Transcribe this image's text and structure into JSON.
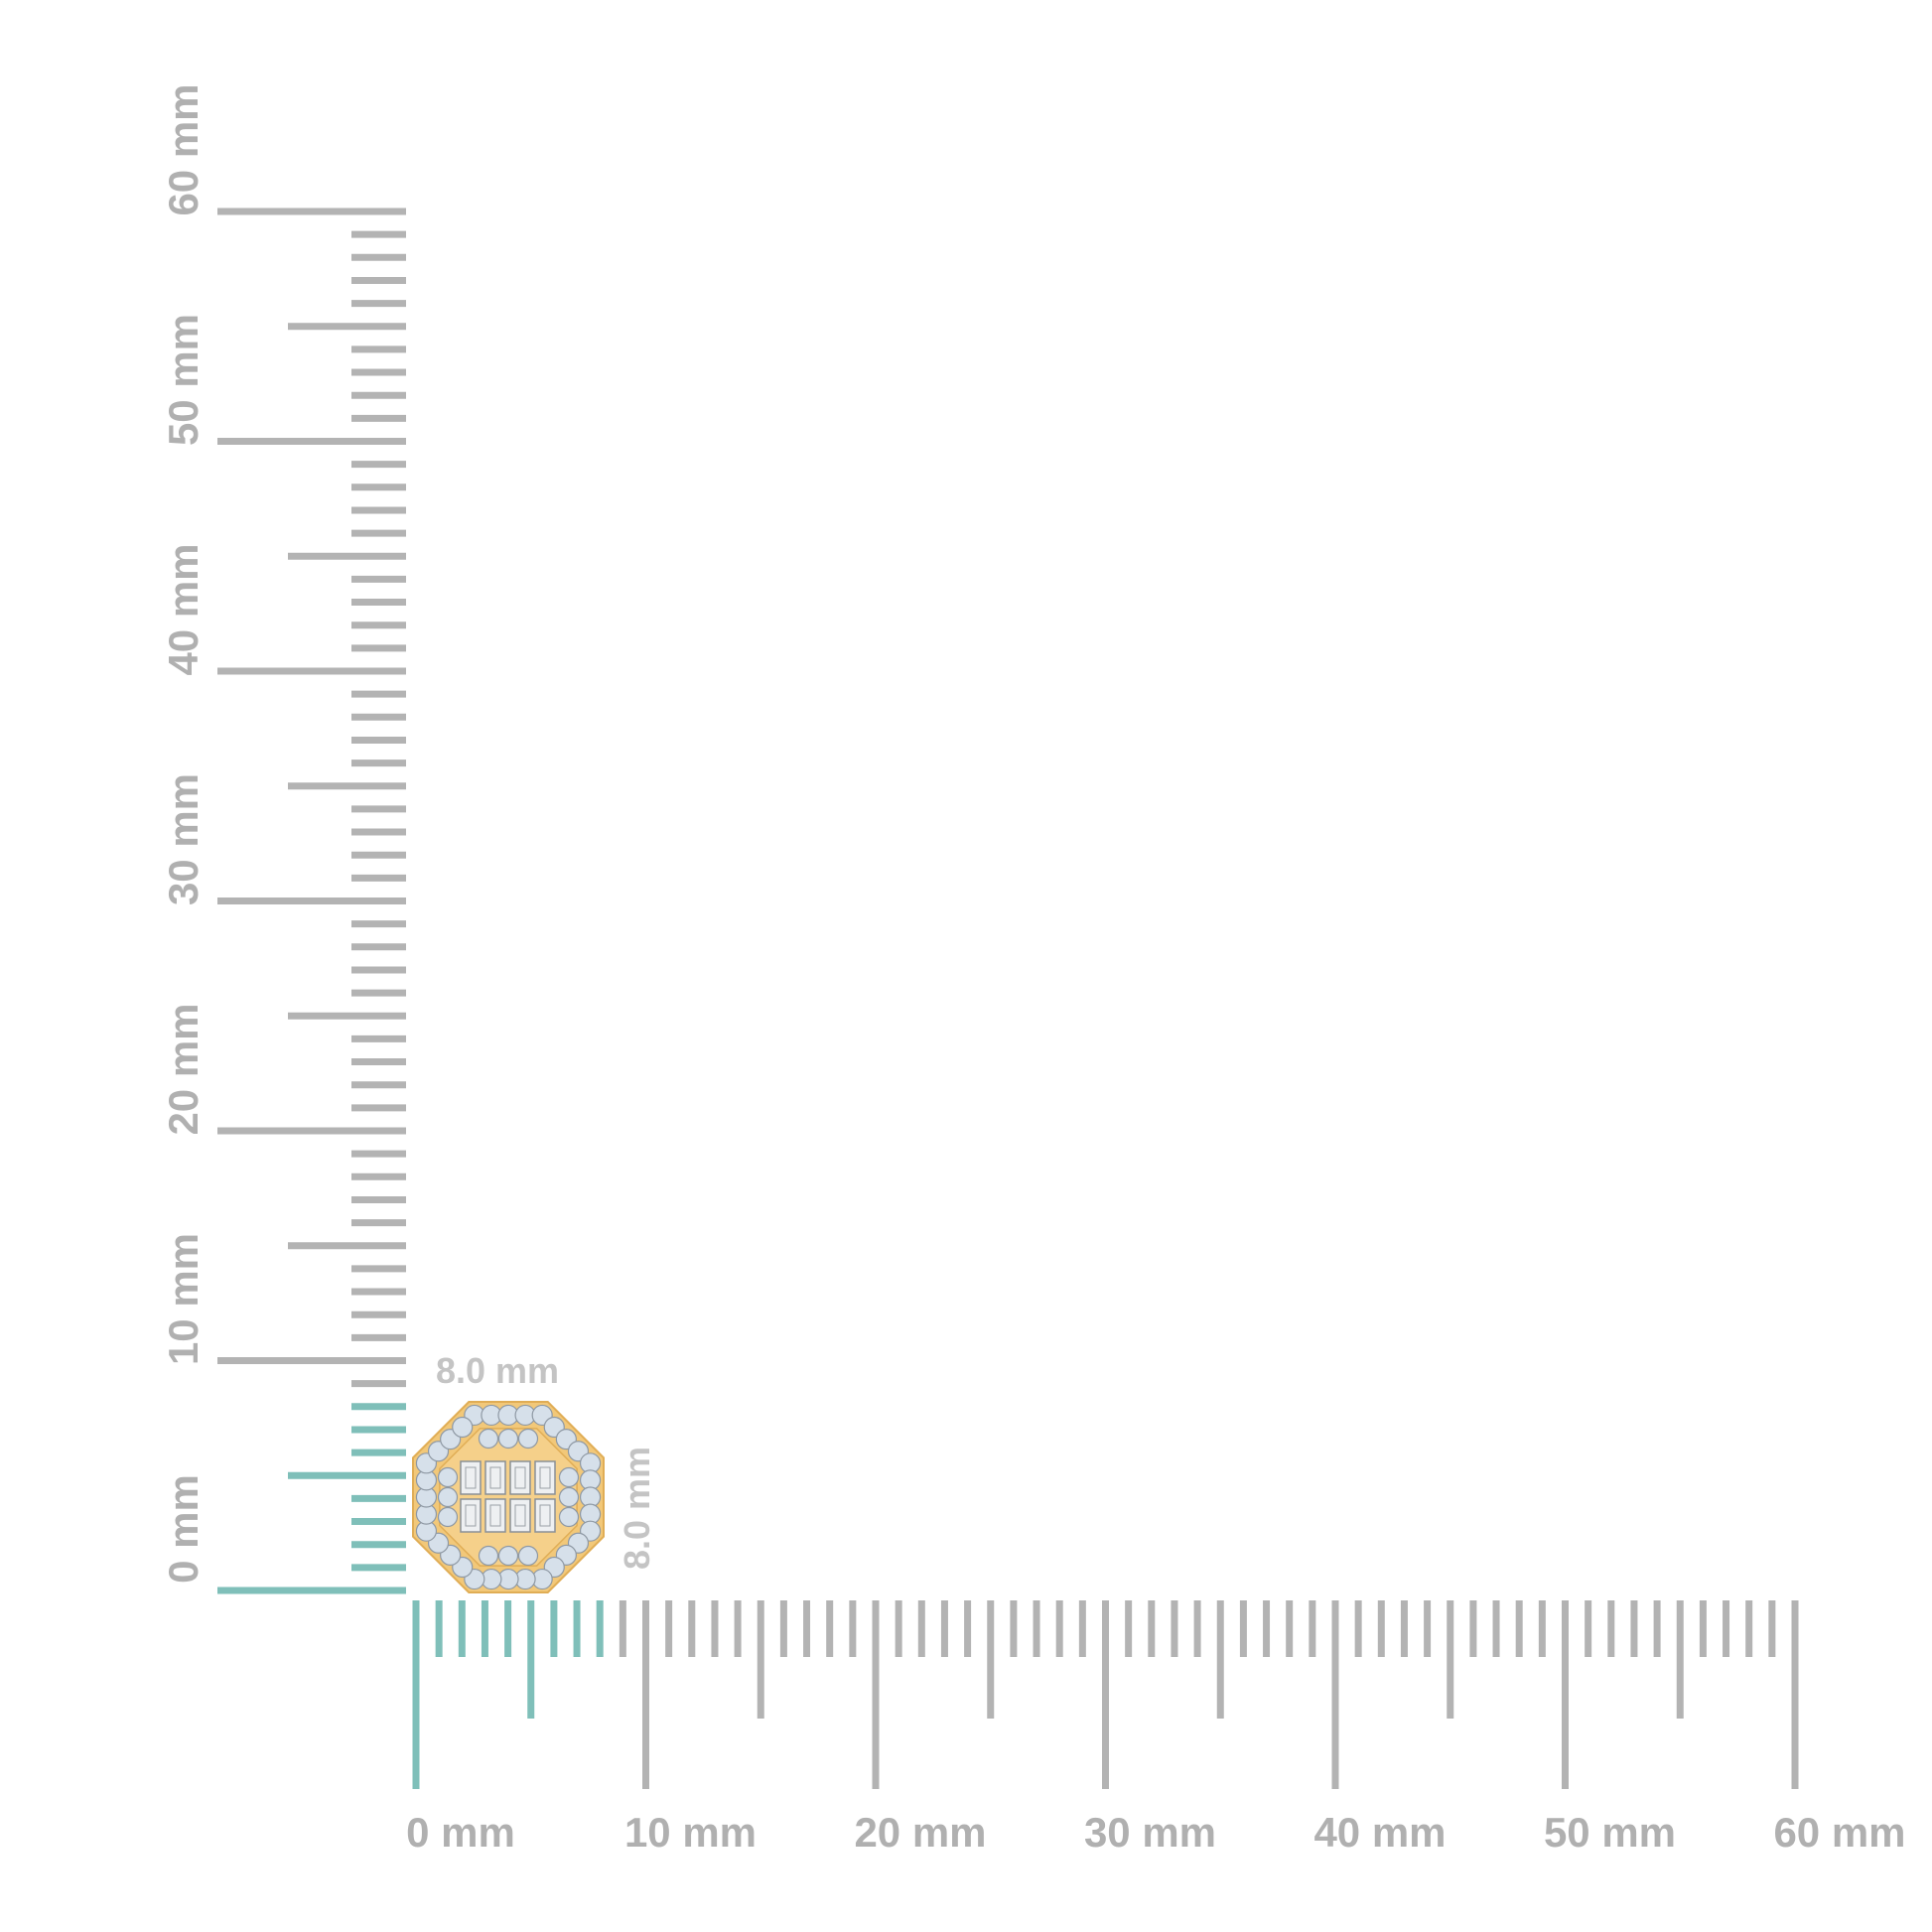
{
  "colors": {
    "ruler": "#b3b3b3",
    "highlight": "#7fbfb9",
    "gold": "#f2c879",
    "gold_dark": "#e0ad55",
    "diamond": "#d6e0ea"
  },
  "vertical_ruler": {
    "labels": [
      "0 mm",
      "10 mm",
      "20 mm",
      "30 mm",
      "40 mm",
      "50 mm",
      "60 mm"
    ],
    "range_mm": [
      0,
      60
    ],
    "highlight_mm": 8
  },
  "horizontal_ruler": {
    "labels": [
      "0 mm",
      "10 mm",
      "20 mm",
      "30 mm",
      "40 mm",
      "50 mm",
      "60 mm"
    ],
    "range_mm": [
      0,
      60
    ],
    "highlight_mm": 8
  },
  "product": {
    "width_label": "8.0 mm",
    "height_label": "8.0 mm",
    "shape": "octagon",
    "width_mm": 8.0,
    "height_mm": 8.0
  }
}
